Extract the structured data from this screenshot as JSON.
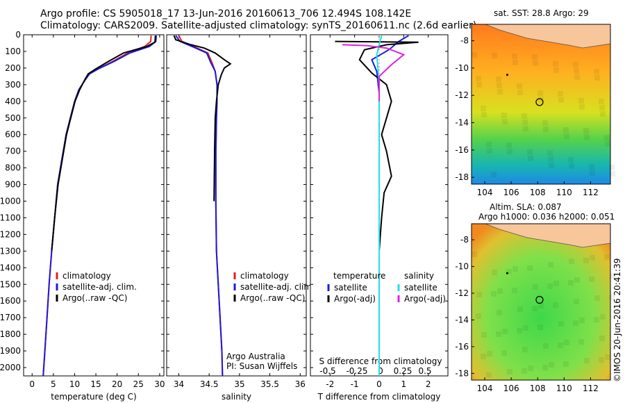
{
  "title_line1": "Argo profile: CS 5905018_17 13-Jun-2016 20160613_706 12.494S 108.142E",
  "title_line2": "Climatology: CARS2009. Satellite-adjusted climatology: synTS_20160611.nc (2.6d earlier)",
  "side_label": "©IMOS 20-Jun-2016 20:41:39",
  "credit_line1": "Argo Australia",
  "credit_line2": "PI: Susan Wijffels",
  "colors": {
    "climatology": "#e02020",
    "satellite": "#1a1ae0",
    "argo": "#000000",
    "satellite_diff_S": "#22e0e0",
    "argo_diff_S": "#e020e0",
    "land": "#f7c69a"
  },
  "chart_data": [
    {
      "type": "line",
      "id": "temperature",
      "xlabel": "temperature (deg C)",
      "ylabel": "",
      "xlim": [
        -2,
        31
      ],
      "ylim": [
        2050,
        0
      ],
      "x_ticks": [
        0,
        5,
        10,
        15,
        20,
        25,
        30
      ],
      "y_ticks": [
        0,
        100,
        200,
        300,
        400,
        500,
        600,
        700,
        800,
        900,
        1000,
        1100,
        1200,
        1300,
        1400,
        1500,
        1600,
        1700,
        1800,
        1900,
        2000
      ],
      "legend": [
        "climatology",
        "satellite-adj. clim.",
        "Argo(..raw -QC)"
      ],
      "series": [
        {
          "name": "climatology",
          "color_key": "climatology",
          "points": [
            [
              28.0,
              5
            ],
            [
              27.9,
              40
            ],
            [
              26.5,
              70
            ],
            [
              22.5,
              110
            ],
            [
              19.0,
              160
            ],
            [
              15.5,
              205
            ],
            [
              13.5,
              235
            ],
            [
              12.5,
              270
            ],
            [
              11.0,
              330
            ],
            [
              10.0,
              400
            ],
            [
              9.0,
              500
            ],
            [
              8.0,
              600
            ],
            [
              7.0,
              750
            ],
            [
              6.0,
              900
            ],
            [
              5.3,
              1100
            ],
            [
              4.6,
              1300
            ],
            [
              4.0,
              1500
            ],
            [
              3.5,
              1700
            ],
            [
              3.0,
              1900
            ],
            [
              2.6,
              2050
            ]
          ]
        },
        {
          "name": "satellite-adj. clim.",
          "color_key": "satellite",
          "points": [
            [
              29.2,
              5
            ],
            [
              29.1,
              40
            ],
            [
              27.6,
              70
            ],
            [
              23.0,
              110
            ],
            [
              19.3,
              160
            ],
            [
              15.6,
              205
            ],
            [
              13.5,
              235
            ],
            [
              12.5,
              270
            ],
            [
              11.0,
              330
            ],
            [
              10.0,
              400
            ],
            [
              9.0,
              500
            ],
            [
              8.0,
              600
            ],
            [
              7.0,
              750
            ],
            [
              6.0,
              900
            ],
            [
              5.3,
              1100
            ],
            [
              4.6,
              1300
            ],
            [
              4.0,
              1500
            ],
            [
              3.5,
              1700
            ],
            [
              3.0,
              1900
            ],
            [
              2.6,
              2050
            ]
          ]
        },
        {
          "name": "Argo(..raw -QC)",
          "color_key": "argo",
          "points": [
            [
              29.0,
              5
            ],
            [
              28.9,
              45
            ],
            [
              27.0,
              70
            ],
            [
              21.5,
              110
            ],
            [
              18.0,
              160
            ],
            [
              15.0,
              205
            ],
            [
              13.2,
              235
            ],
            [
              12.4,
              270
            ],
            [
              11.2,
              330
            ],
            [
              10.1,
              400
            ],
            [
              9.1,
              500
            ],
            [
              8.1,
              600
            ],
            [
              7.1,
              750
            ],
            [
              6.1,
              900
            ],
            [
              5.3,
              1100
            ],
            [
              4.6,
              1300
            ]
          ]
        }
      ]
    },
    {
      "type": "line",
      "id": "salinity",
      "xlabel": "salinity",
      "xlim": [
        33.8,
        36.1
      ],
      "ylim": [
        2050,
        0
      ],
      "x_ticks": [
        34,
        34.5,
        35,
        35.5,
        36
      ],
      "legend": [
        "climatology",
        "satellite-adj. clim.",
        "Argo(..raw -QC)"
      ],
      "series": [
        {
          "name": "climatology",
          "color_key": "climatology",
          "points": [
            [
              34.0,
              5
            ],
            [
              34.05,
              40
            ],
            [
              34.3,
              80
            ],
            [
              34.48,
              110
            ],
            [
              34.55,
              170
            ],
            [
              34.6,
              220
            ],
            [
              34.63,
              300
            ],
            [
              34.63,
              400
            ],
            [
              34.62,
              500
            ],
            [
              34.61,
              700
            ],
            [
              34.61,
              1000
            ],
            [
              34.62,
              1300
            ],
            [
              34.65,
              1500
            ],
            [
              34.68,
              1700
            ],
            [
              34.71,
              1900
            ],
            [
              34.72,
              2050
            ]
          ]
        },
        {
          "name": "satellite-adj. clim.",
          "color_key": "satellite",
          "points": [
            [
              33.95,
              5
            ],
            [
              34.02,
              40
            ],
            [
              34.28,
              80
            ],
            [
              34.46,
              110
            ],
            [
              34.53,
              170
            ],
            [
              34.6,
              220
            ],
            [
              34.63,
              300
            ],
            [
              34.63,
              400
            ],
            [
              34.62,
              500
            ],
            [
              34.61,
              700
            ],
            [
              34.61,
              1000
            ],
            [
              34.62,
              1300
            ],
            [
              34.65,
              1500
            ],
            [
              34.68,
              1700
            ],
            [
              34.71,
              1900
            ],
            [
              34.72,
              2050
            ]
          ]
        },
        {
          "name": "Argo(..raw -QC)",
          "color_key": "argo",
          "points": [
            [
              33.92,
              5
            ],
            [
              33.95,
              30
            ],
            [
              34.2,
              60
            ],
            [
              34.42,
              80
            ],
            [
              34.6,
              110
            ],
            [
              34.75,
              150
            ],
            [
              34.85,
              175
            ],
            [
              34.75,
              200
            ],
            [
              34.7,
              240
            ],
            [
              34.65,
              300
            ],
            [
              34.62,
              400
            ],
            [
              34.6,
              500
            ],
            [
              34.59,
              700
            ],
            [
              34.58,
              1000
            ]
          ]
        }
      ]
    },
    {
      "type": "line",
      "id": "difference",
      "xlabel": "T difference from climatology",
      "top_label": "S difference from climatology",
      "xlim": [
        -2.8,
        2.8
      ],
      "ylim": [
        2050,
        0
      ],
      "x_ticks": [
        -2,
        -1,
        0,
        1,
        2
      ],
      "x2_ticks": [
        -0.5,
        -0.25,
        0,
        0.25,
        0.5
      ],
      "legend_titles": [
        "temperature",
        "salinity"
      ],
      "legend": [
        "satellite",
        "Argo(-adj)",
        "satellite",
        "Argo(-adj)"
      ],
      "series": [
        {
          "name": "satellite",
          "group": "temperature",
          "color_key": "satellite",
          "points": [
            [
              1.2,
              5
            ],
            [
              0.8,
              40
            ],
            [
              0.4,
              90
            ],
            [
              -0.3,
              150
            ],
            [
              -0.1,
              220
            ],
            [
              0.0,
              350
            ],
            [
              0.0,
              2050
            ]
          ]
        },
        {
          "name": "Argo(-adj)",
          "group": "temperature",
          "color_key": "argo",
          "points": [
            [
              -1.8,
              40
            ],
            [
              1.6,
              45
            ],
            [
              0.3,
              60
            ],
            [
              -0.6,
              90
            ],
            [
              -0.8,
              150
            ],
            [
              -0.3,
              230
            ],
            [
              0.3,
              300
            ],
            [
              0.5,
              400
            ],
            [
              0.3,
              500
            ],
            [
              0.1,
              600
            ],
            [
              0.3,
              700
            ],
            [
              0.5,
              850
            ],
            [
              0.2,
              950
            ],
            [
              0.1,
              1100
            ],
            [
              0.0,
              1300
            ]
          ]
        },
        {
          "name": "satellite",
          "group": "salinity",
          "color_key": "satellite_diff_S",
          "points": [
            [
              0.1,
              5
            ],
            [
              0.0,
              60
            ],
            [
              -0.1,
              120
            ],
            [
              -0.05,
              200
            ],
            [
              0.0,
              300
            ],
            [
              0.0,
              2050
            ]
          ]
        },
        {
          "name": "Argo(-adj)",
          "group": "salinity",
          "color_key": "argo_diff_S",
          "points": [
            [
              -1.5,
              60
            ],
            [
              -0.5,
              65
            ],
            [
              0.3,
              80
            ],
            [
              1.0,
              120
            ],
            [
              0.5,
              180
            ],
            [
              0.0,
              250
            ],
            [
              0.0,
              400
            ]
          ]
        }
      ]
    },
    {
      "type": "heatmap",
      "id": "sst_map",
      "title": "sat. SST: 28.8  Argo: 29",
      "x_ticks": [
        104,
        106,
        108,
        110,
        112
      ],
      "y_ticks": [
        -8,
        -10,
        -12,
        -14,
        -16,
        -18
      ],
      "xlim": [
        103,
        113.5
      ],
      "ylim": [
        -18.5,
        -6.8
      ],
      "float_position": [
        108.142,
        -12.494
      ]
    },
    {
      "type": "heatmap",
      "id": "sla_map",
      "title_line1": "Altim. SLA: 0.087",
      "title_line2": "Argo h1000: 0.036  h2000: 0.051",
      "x_ticks": [
        104,
        106,
        108,
        110,
        112
      ],
      "y_ticks": [
        -8,
        -10,
        -12,
        -14,
        -16,
        -18
      ],
      "xlim": [
        103,
        113.5
      ],
      "ylim": [
        -18.5,
        -6.8
      ],
      "float_position": [
        108.142,
        -12.494
      ]
    }
  ]
}
